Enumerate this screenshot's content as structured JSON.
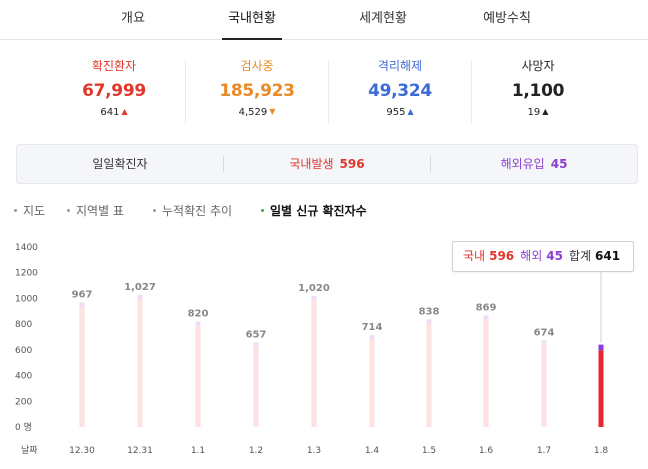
{
  "tabs": [
    {
      "label": "개요",
      "active": false
    },
    {
      "label": "국내현황",
      "active": true
    },
    {
      "label": "세계현황",
      "active": false
    },
    {
      "label": "예방수칙",
      "active": false
    }
  ],
  "stats": [
    {
      "title": "확진환자",
      "value": "67,999",
      "delta": "641",
      "arrow": "▲",
      "color": "#e1362b",
      "arrow_color": "#e1362b"
    },
    {
      "title": "검사중",
      "value": "185,923",
      "delta": "4,529",
      "arrow": "▼",
      "color": "#ea8a26",
      "arrow_color": "#ea8a26"
    },
    {
      "title": "격리해제",
      "value": "49,324",
      "delta": "955",
      "arrow": "▲",
      "color": "#3d6bd6",
      "arrow_color": "#3d6bd6"
    },
    {
      "title": "사망자",
      "value": "1,100",
      "delta": "19",
      "arrow": "▲",
      "color": "#222222",
      "arrow_color": "#222222"
    }
  ],
  "banner": {
    "daily_label": "일일확진자",
    "domestic_label": "국내발생",
    "domestic_value": "596",
    "overseas_label": "해외유입",
    "overseas_value": "45",
    "domestic_color": "#e1362b",
    "overseas_color": "#8b3fd0"
  },
  "subtabs": [
    {
      "label": "지도",
      "active": false
    },
    {
      "label": "지역별 표",
      "active": false
    },
    {
      "label": "누적확진 추이",
      "active": false
    },
    {
      "label": "일별 신규 확진자수",
      "active": true
    }
  ],
  "tooltip": {
    "domestic_label": "국내",
    "domestic_value": "596",
    "overseas_label": "해외",
    "overseas_value": "45",
    "total_label": "합계",
    "total_value": "641"
  },
  "chart_data": {
    "type": "bar",
    "stacked": true,
    "categories": [
      "12.30",
      "12.31",
      "1.1",
      "1.2",
      "1.3",
      "1.4",
      "1.5",
      "1.6",
      "1.7",
      "1.8"
    ],
    "series": [
      {
        "name": "국내",
        "values": [
          940,
          1000,
          790,
          628,
          986,
          682,
          809,
          839,
          653,
          596
        ]
      },
      {
        "name": "해외",
        "values": [
          27,
          27,
          30,
          29,
          34,
          32,
          29,
          30,
          21,
          45
        ]
      }
    ],
    "totals": [
      967,
      1027,
      820,
      657,
      1020,
      714,
      838,
      869,
      674,
      641
    ],
    "total_labels": [
      "967",
      "1,027",
      "820",
      "657",
      "1,020",
      "714",
      "838",
      "869",
      "674",
      ""
    ],
    "y_ticks": [
      "0 명",
      "200",
      "400",
      "600",
      "800",
      "1000",
      "1200",
      "1400"
    ],
    "ylim": [
      0,
      1400
    ],
    "x_axis_label": "날짜",
    "highlight_index": 9,
    "colors": {
      "domestic_faded": "#fde1e3",
      "overseas_faded": "#ecdcf8",
      "domestic_active": "#e8262f",
      "overseas_active": "#8a3fdc",
      "label": "#888888"
    }
  }
}
